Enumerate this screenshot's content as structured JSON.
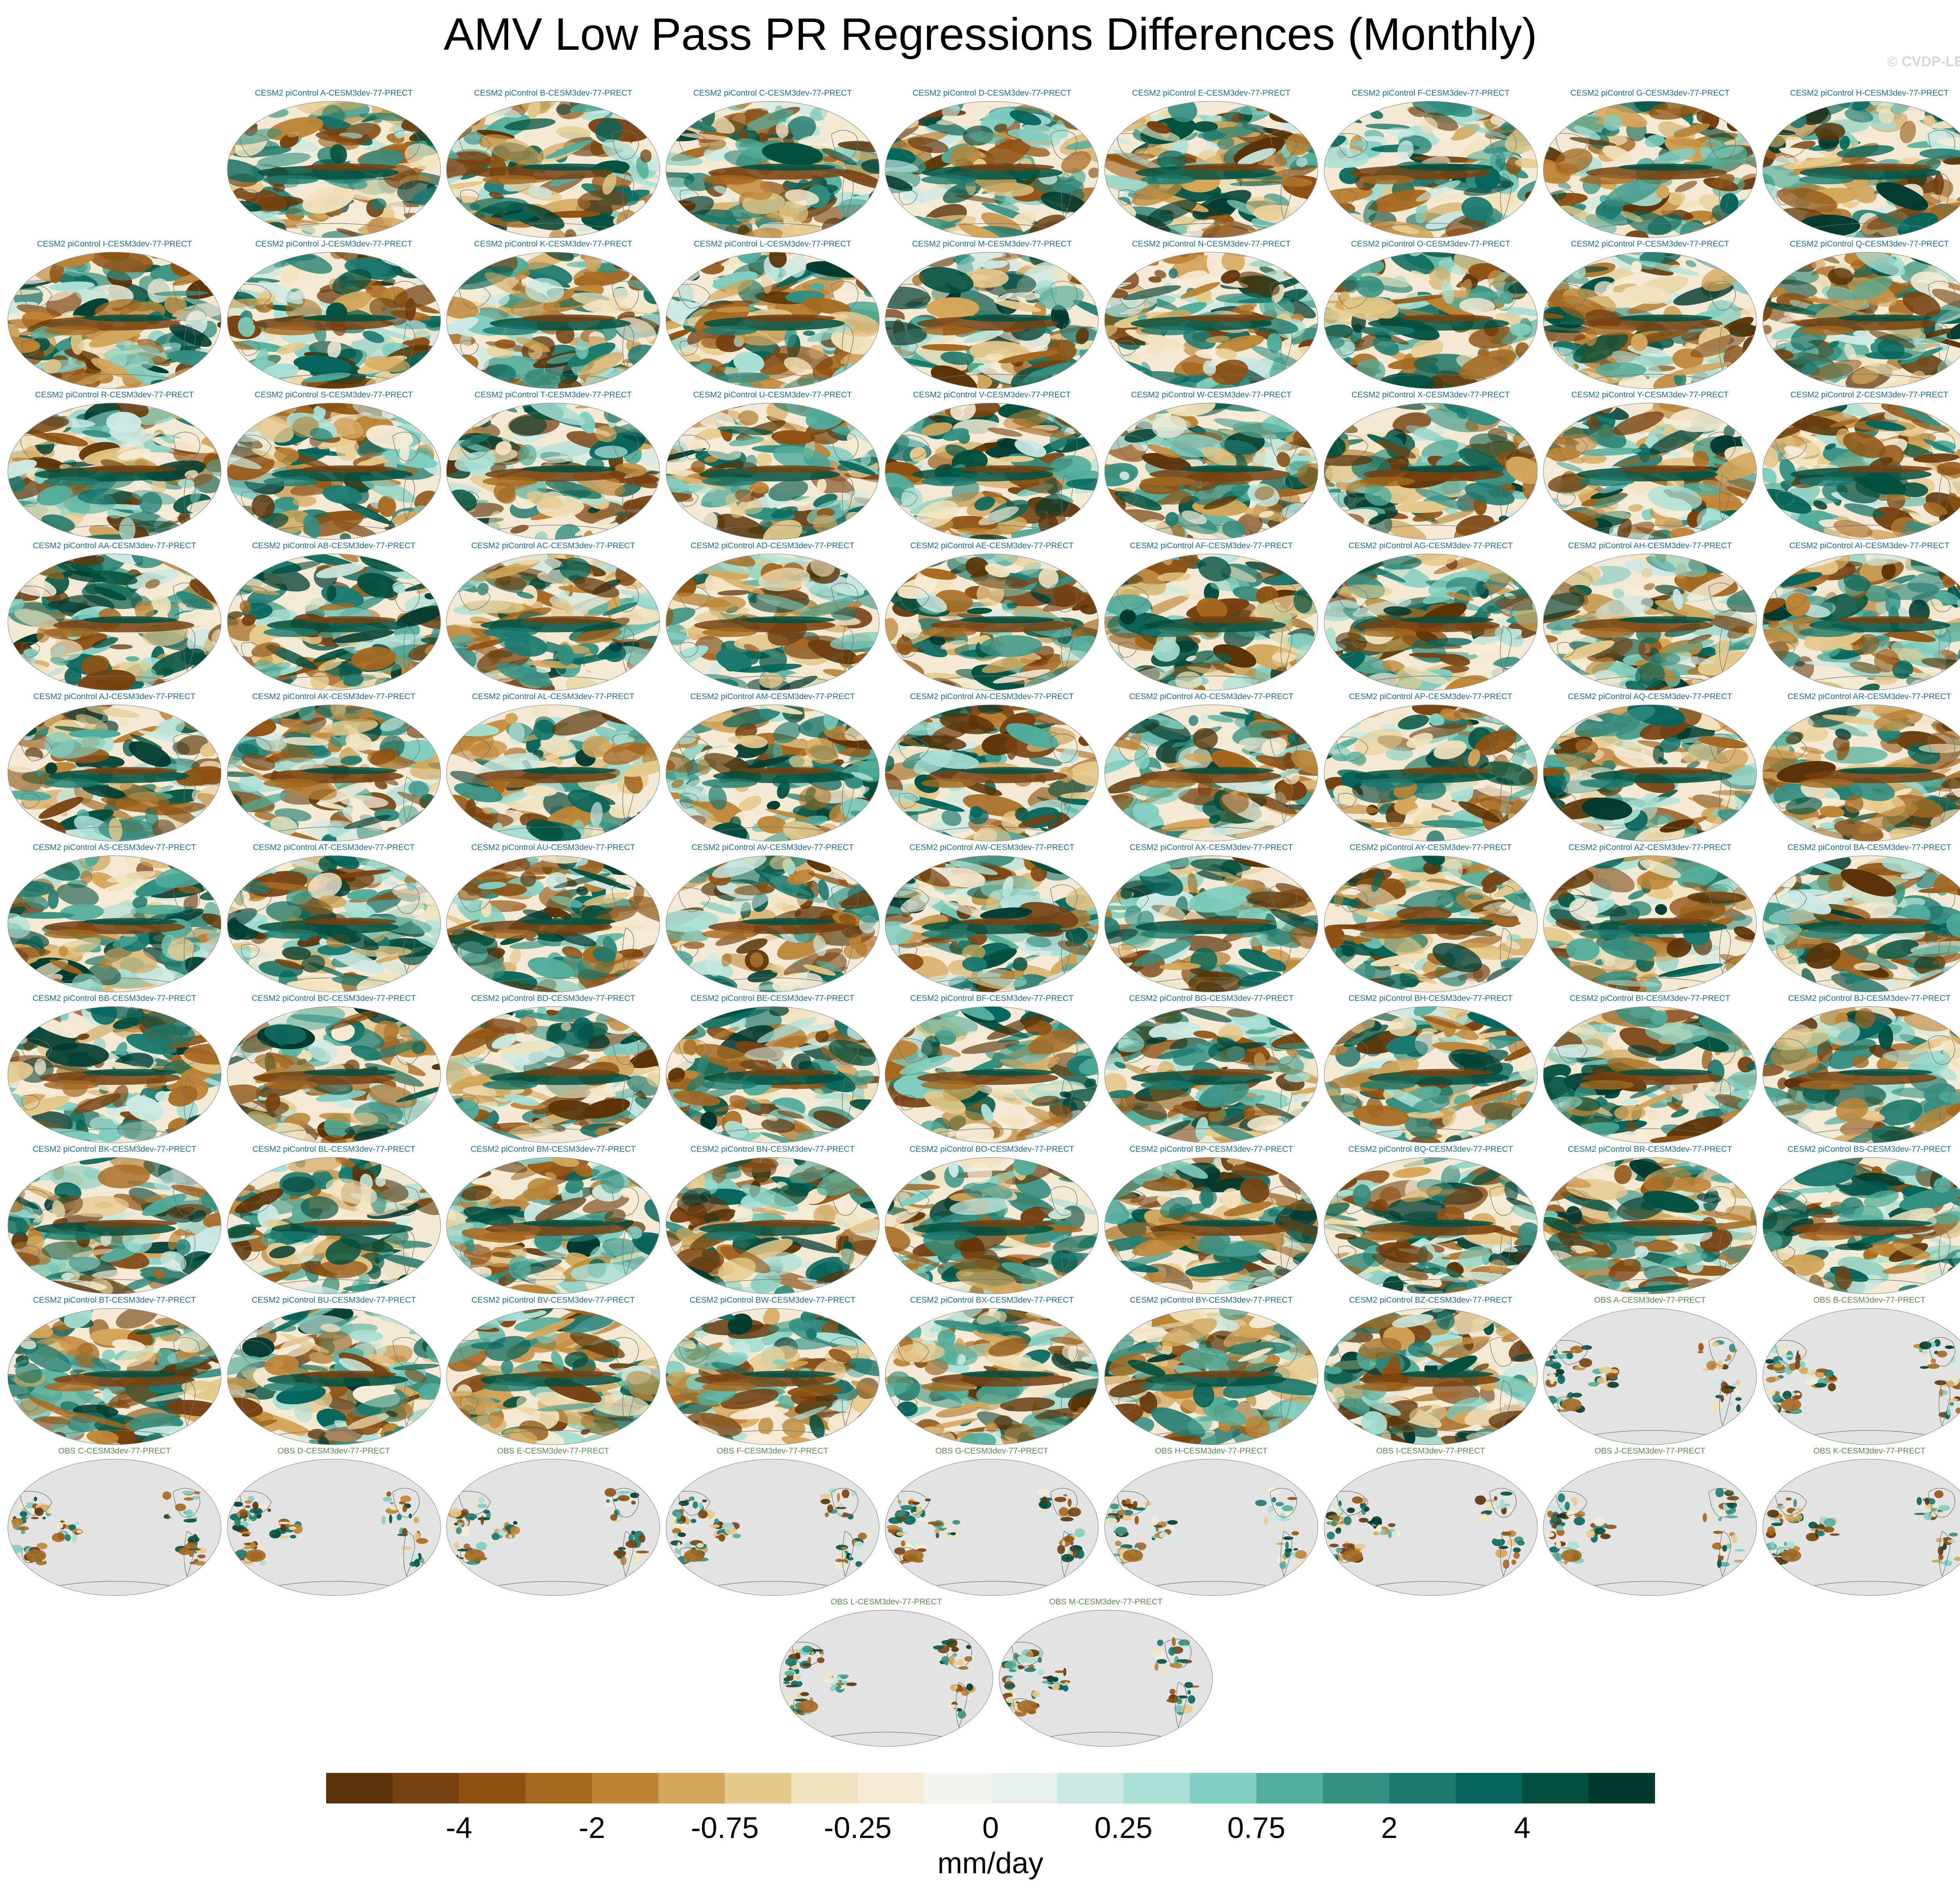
{
  "title": "AMV Low Pass PR Regressions Differences (Monthly)",
  "watermark": "© CVDP-LE",
  "colors": {
    "model_title": "#1f6e8c",
    "obs_title": "#5e8a4e",
    "land_gray": "#e3e3e3",
    "coast": "#6f6f6f"
  },
  "panels": [
    {
      "label": "CESM2 piControl A-CESM3dev-77-PRECT",
      "kind": "model"
    },
    {
      "label": "CESM2 piControl B-CESM3dev-77-PRECT",
      "kind": "model"
    },
    {
      "label": "CESM2 piControl C-CESM3dev-77-PRECT",
      "kind": "model"
    },
    {
      "label": "CESM2 piControl D-CESM3dev-77-PRECT",
      "kind": "model"
    },
    {
      "label": "CESM2 piControl E-CESM3dev-77-PRECT",
      "kind": "model"
    },
    {
      "label": "CESM2 piControl F-CESM3dev-77-PRECT",
      "kind": "model"
    },
    {
      "label": "CESM2 piControl G-CESM3dev-77-PRECT",
      "kind": "model"
    },
    {
      "label": "CESM2 piControl H-CESM3dev-77-PRECT",
      "kind": "model"
    },
    {
      "label": "CESM2 piControl I-CESM3dev-77-PRECT",
      "kind": "model"
    },
    {
      "label": "CESM2 piControl J-CESM3dev-77-PRECT",
      "kind": "model"
    },
    {
      "label": "CESM2 piControl K-CESM3dev-77-PRECT",
      "kind": "model"
    },
    {
      "label": "CESM2 piControl L-CESM3dev-77-PRECT",
      "kind": "model"
    },
    {
      "label": "CESM2 piControl M-CESM3dev-77-PRECT",
      "kind": "model"
    },
    {
      "label": "CESM2 piControl N-CESM3dev-77-PRECT",
      "kind": "model"
    },
    {
      "label": "CESM2 piControl O-CESM3dev-77-PRECT",
      "kind": "model"
    },
    {
      "label": "CESM2 piControl P-CESM3dev-77-PRECT",
      "kind": "model"
    },
    {
      "label": "CESM2 piControl Q-CESM3dev-77-PRECT",
      "kind": "model"
    },
    {
      "label": "CESM2 piControl R-CESM3dev-77-PRECT",
      "kind": "model"
    },
    {
      "label": "CESM2 piControl S-CESM3dev-77-PRECT",
      "kind": "model"
    },
    {
      "label": "CESM2 piControl T-CESM3dev-77-PRECT",
      "kind": "model"
    },
    {
      "label": "CESM2 piControl U-CESM3dev-77-PRECT",
      "kind": "model"
    },
    {
      "label": "CESM2 piControl V-CESM3dev-77-PRECT",
      "kind": "model"
    },
    {
      "label": "CESM2 piControl W-CESM3dev-77-PRECT",
      "kind": "model"
    },
    {
      "label": "CESM2 piControl X-CESM3dev-77-PRECT",
      "kind": "model"
    },
    {
      "label": "CESM2 piControl Y-CESM3dev-77-PRECT",
      "kind": "model"
    },
    {
      "label": "CESM2 piControl Z-CESM3dev-77-PRECT",
      "kind": "model"
    },
    {
      "label": "CESM2 piControl AA-CESM3dev-77-PRECT",
      "kind": "model"
    },
    {
      "label": "CESM2 piControl AB-CESM3dev-77-PRECT",
      "kind": "model"
    },
    {
      "label": "CESM2 piControl AC-CESM3dev-77-PRECT",
      "kind": "model"
    },
    {
      "label": "CESM2 piControl AD-CESM3dev-77-PRECT",
      "kind": "model"
    },
    {
      "label": "CESM2 piControl AE-CESM3dev-77-PRECT",
      "kind": "model"
    },
    {
      "label": "CESM2 piControl AF-CESM3dev-77-PRECT",
      "kind": "model"
    },
    {
      "label": "CESM2 piControl AG-CESM3dev-77-PRECT",
      "kind": "model"
    },
    {
      "label": "CESM2 piControl AH-CESM3dev-77-PRECT",
      "kind": "model"
    },
    {
      "label": "CESM2 piControl AI-CESM3dev-77-PRECT",
      "kind": "model"
    },
    {
      "label": "CESM2 piControl AJ-CESM3dev-77-PRECT",
      "kind": "model"
    },
    {
      "label": "CESM2 piControl AK-CESM3dev-77-PRECT",
      "kind": "model"
    },
    {
      "label": "CESM2 piControl AL-CESM3dev-77-PRECT",
      "kind": "model"
    },
    {
      "label": "CESM2 piControl AM-CESM3dev-77-PRECT",
      "kind": "model"
    },
    {
      "label": "CESM2 piControl AN-CESM3dev-77-PRECT",
      "kind": "model"
    },
    {
      "label": "CESM2 piControl AO-CESM3dev-77-PRECT",
      "kind": "model"
    },
    {
      "label": "CESM2 piControl AP-CESM3dev-77-PRECT",
      "kind": "model"
    },
    {
      "label": "CESM2 piControl AQ-CESM3dev-77-PRECT",
      "kind": "model"
    },
    {
      "label": "CESM2 piControl AR-CESM3dev-77-PRECT",
      "kind": "model"
    },
    {
      "label": "CESM2 piControl AS-CESM3dev-77-PRECT",
      "kind": "model"
    },
    {
      "label": "CESM2 piControl AT-CESM3dev-77-PRECT",
      "kind": "model"
    },
    {
      "label": "CESM2 piControl AU-CESM3dev-77-PRECT",
      "kind": "model"
    },
    {
      "label": "CESM2 piControl AV-CESM3dev-77-PRECT",
      "kind": "model"
    },
    {
      "label": "CESM2 piControl AW-CESM3dev-77-PRECT",
      "kind": "model"
    },
    {
      "label": "CESM2 piControl AX-CESM3dev-77-PRECT",
      "kind": "model"
    },
    {
      "label": "CESM2 piControl AY-CESM3dev-77-PRECT",
      "kind": "model"
    },
    {
      "label": "CESM2 piControl AZ-CESM3dev-77-PRECT",
      "kind": "model"
    },
    {
      "label": "CESM2 piControl BA-CESM3dev-77-PRECT",
      "kind": "model"
    },
    {
      "label": "CESM2 piControl BB-CESM3dev-77-PRECT",
      "kind": "model"
    },
    {
      "label": "CESM2 piControl BC-CESM3dev-77-PRECT",
      "kind": "model"
    },
    {
      "label": "CESM2 piControl BD-CESM3dev-77-PRECT",
      "kind": "model"
    },
    {
      "label": "CESM2 piControl BE-CESM3dev-77-PRECT",
      "kind": "model"
    },
    {
      "label": "CESM2 piControl BF-CESM3dev-77-PRECT",
      "kind": "model"
    },
    {
      "label": "CESM2 piControl BG-CESM3dev-77-PRECT",
      "kind": "model"
    },
    {
      "label": "CESM2 piControl BH-CESM3dev-77-PRECT",
      "kind": "model"
    },
    {
      "label": "CESM2 piControl BI-CESM3dev-77-PRECT",
      "kind": "model"
    },
    {
      "label": "CESM2 piControl BJ-CESM3dev-77-PRECT",
      "kind": "model"
    },
    {
      "label": "CESM2 piControl BK-CESM3dev-77-PRECT",
      "kind": "model"
    },
    {
      "label": "CESM2 piControl BL-CESM3dev-77-PRECT",
      "kind": "model"
    },
    {
      "label": "CESM2 piControl BM-CESM3dev-77-PRECT",
      "kind": "model"
    },
    {
      "label": "CESM2 piControl BN-CESM3dev-77-PRECT",
      "kind": "model"
    },
    {
      "label": "CESM2 piControl BO-CESM3dev-77-PRECT",
      "kind": "model"
    },
    {
      "label": "CESM2 piControl BP-CESM3dev-77-PRECT",
      "kind": "model"
    },
    {
      "label": "CESM2 piControl BQ-CESM3dev-77-PRECT",
      "kind": "model"
    },
    {
      "label": "CESM2 piControl BR-CESM3dev-77-PRECT",
      "kind": "model"
    },
    {
      "label": "CESM2 piControl BS-CESM3dev-77-PRECT",
      "kind": "model"
    },
    {
      "label": "CESM2 piControl BT-CESM3dev-77-PRECT",
      "kind": "model"
    },
    {
      "label": "CESM2 piControl BU-CESM3dev-77-PRECT",
      "kind": "model"
    },
    {
      "label": "CESM2 piControl BV-CESM3dev-77-PRECT",
      "kind": "model"
    },
    {
      "label": "CESM2 piControl BW-CESM3dev-77-PRECT",
      "kind": "model"
    },
    {
      "label": "CESM2 piControl BX-CESM3dev-77-PRECT",
      "kind": "model"
    },
    {
      "label": "CESM2 piControl BY-CESM3dev-77-PRECT",
      "kind": "model"
    },
    {
      "label": "CESM2 piControl BZ-CESM3dev-77-PRECT",
      "kind": "model"
    },
    {
      "label": "OBS A-CESM3dev-77-PRECT",
      "kind": "obs"
    },
    {
      "label": "OBS B-CESM3dev-77-PRECT",
      "kind": "obs"
    },
    {
      "label": "OBS C-CESM3dev-77-PRECT",
      "kind": "obs"
    },
    {
      "label": "OBS D-CESM3dev-77-PRECT",
      "kind": "obs"
    },
    {
      "label": "OBS E-CESM3dev-77-PRECT",
      "kind": "obs"
    },
    {
      "label": "OBS F-CESM3dev-77-PRECT",
      "kind": "obs"
    },
    {
      "label": "OBS G-CESM3dev-77-PRECT",
      "kind": "obs"
    },
    {
      "label": "OBS H-CESM3dev-77-PRECT",
      "kind": "obs"
    },
    {
      "label": "OBS I-CESM3dev-77-PRECT",
      "kind": "obs"
    },
    {
      "label": "OBS J-CESM3dev-77-PRECT",
      "kind": "obs"
    },
    {
      "label": "OBS K-CESM3dev-77-PRECT",
      "kind": "obs"
    },
    {
      "label": "OBS L-CESM3dev-77-PRECT",
      "kind": "obs"
    },
    {
      "label": "OBS M-CESM3dev-77-PRECT",
      "kind": "obs"
    }
  ],
  "colorbar": {
    "units": "mm/day",
    "colors": [
      "#5c3306",
      "#774110",
      "#8f5212",
      "#a5681f",
      "#bd8435",
      "#d3a65b",
      "#e6c98c",
      "#f1e3bd",
      "#f6ecd6",
      "#f4f2ec",
      "#e9f1ef",
      "#cbe9e3",
      "#a9dfd5",
      "#81cdbf",
      "#52ad9b",
      "#348f81",
      "#1c7a6e",
      "#04655a",
      "#02503f",
      "#003a2f"
    ],
    "labels": [
      {
        "text": "-4",
        "boundary": 2
      },
      {
        "text": "-2",
        "boundary": 4
      },
      {
        "text": "-0.75",
        "boundary": 6
      },
      {
        "text": "-0.25",
        "boundary": 8
      },
      {
        "text": "0",
        "boundary": 10
      },
      {
        "text": "0.25",
        "boundary": 12
      },
      {
        "text": "0.75",
        "boundary": 14
      },
      {
        "text": "2",
        "boundary": 16
      },
      {
        "text": "4",
        "boundary": 18
      }
    ]
  }
}
